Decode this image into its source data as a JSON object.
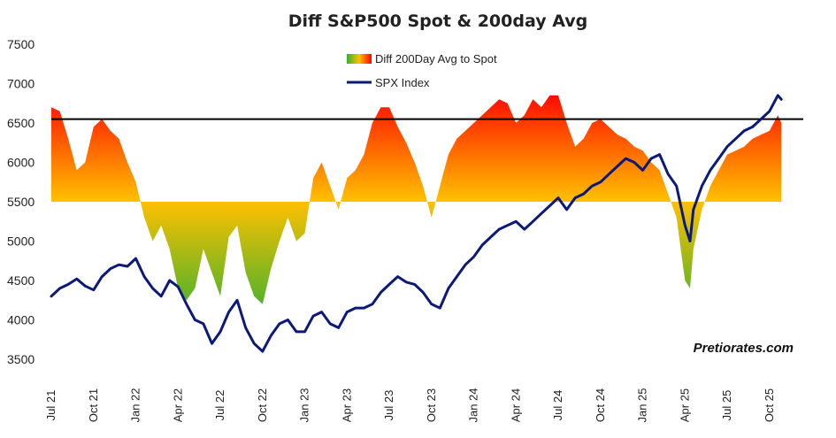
{
  "chart_data": {
    "type": "line",
    "title": "Diff S&P500 Spot & 200day Avg",
    "source_label": "Pretiorates.com",
    "ylim": [
      3500,
      7500
    ],
    "yticks": [
      3500,
      4000,
      4500,
      5000,
      5500,
      6000,
      6500,
      7000,
      7500
    ],
    "xlim": [
      2021.5,
      2025.95
    ],
    "xticks": [
      {
        "label": "Jul 21",
        "t": 2021.5
      },
      {
        "label": "Oct 21",
        "t": 2021.75
      },
      {
        "label": "Jan 22",
        "t": 2022.0
      },
      {
        "label": "Apr 22",
        "t": 2022.25
      },
      {
        "label": "Jul 22",
        "t": 2022.5
      },
      {
        "label": "Oct 22",
        "t": 2022.75
      },
      {
        "label": "Jan 23",
        "t": 2023.0
      },
      {
        "label": "Apr 23",
        "t": 2023.25
      },
      {
        "label": "Jul 23",
        "t": 2023.5
      },
      {
        "label": "Oct 23",
        "t": 2023.75
      },
      {
        "label": "Jan 24",
        "t": 2024.0
      },
      {
        "label": "Apr 24",
        "t": 2024.25
      },
      {
        "label": "Jul 24",
        "t": 2024.5
      },
      {
        "label": "Oct 24",
        "t": 2024.75
      },
      {
        "label": "Jan 25",
        "t": 2025.0
      },
      {
        "label": "Apr 25",
        "t": 2025.25
      },
      {
        "label": "Jul 25",
        "t": 2025.5
      },
      {
        "label": "Oct 25",
        "t": 2025.75
      }
    ],
    "reference_line": 6550,
    "area_baseline": 5500,
    "colors": {
      "spx": "#0b1a7a",
      "ref_line": "#000000",
      "area_top": "#ff0000",
      "area_mid": "#ffc000",
      "area_low": "#35b030"
    },
    "series": [
      {
        "name": "SPX Index",
        "t": [
          2021.5,
          2021.55,
          2021.6,
          2021.65,
          2021.7,
          2021.75,
          2021.8,
          2021.85,
          2021.9,
          2021.95,
          2022.0,
          2022.05,
          2022.1,
          2022.15,
          2022.2,
          2022.25,
          2022.3,
          2022.35,
          2022.4,
          2022.45,
          2022.5,
          2022.55,
          2022.6,
          2022.65,
          2022.7,
          2022.75,
          2022.8,
          2022.85,
          2022.9,
          2022.95,
          2023.0,
          2023.05,
          2023.1,
          2023.15,
          2023.2,
          2023.25,
          2023.3,
          2023.35,
          2023.4,
          2023.45,
          2023.5,
          2023.55,
          2023.6,
          2023.65,
          2023.7,
          2023.75,
          2023.8,
          2023.85,
          2023.9,
          2023.95,
          2024.0,
          2024.05,
          2024.1,
          2024.15,
          2024.2,
          2024.25,
          2024.3,
          2024.35,
          2024.4,
          2024.45,
          2024.5,
          2024.55,
          2024.6,
          2024.65,
          2024.7,
          2024.75,
          2024.8,
          2024.85,
          2024.9,
          2024.95,
          2025.0,
          2025.05,
          2025.1,
          2025.15,
          2025.2,
          2025.25,
          2025.28,
          2025.3,
          2025.35,
          2025.4,
          2025.45,
          2025.5,
          2025.55,
          2025.6,
          2025.65,
          2025.7,
          2025.75,
          2025.8,
          2025.82
        ],
        "values": [
          4300,
          4400,
          4450,
          4520,
          4430,
          4380,
          4550,
          4650,
          4700,
          4680,
          4780,
          4550,
          4400,
          4300,
          4500,
          4420,
          4200,
          4000,
          3950,
          3700,
          3850,
          4100,
          4250,
          3900,
          3700,
          3600,
          3800,
          3950,
          4000,
          3850,
          3850,
          4050,
          4100,
          3950,
          3900,
          4100,
          4150,
          4150,
          4200,
          4350,
          4450,
          4550,
          4480,
          4450,
          4350,
          4200,
          4150,
          4400,
          4550,
          4700,
          4800,
          4950,
          5050,
          5150,
          5200,
          5250,
          5150,
          5250,
          5350,
          5450,
          5550,
          5400,
          5550,
          5600,
          5700,
          5750,
          5850,
          5950,
          6050,
          6000,
          5900,
          6050,
          6100,
          5850,
          5700,
          5200,
          5000,
          5400,
          5700,
          5900,
          6050,
          6200,
          6300,
          6400,
          6450,
          6550,
          6650,
          6850,
          6800
        ]
      },
      {
        "name": "Diff 200Day Avg to Spot",
        "t": [
          2021.5,
          2021.55,
          2021.6,
          2021.65,
          2021.7,
          2021.75,
          2021.8,
          2021.85,
          2021.9,
          2021.95,
          2022.0,
          2022.05,
          2022.1,
          2022.15,
          2022.2,
          2022.25,
          2022.3,
          2022.35,
          2022.4,
          2022.45,
          2022.5,
          2022.55,
          2022.6,
          2022.65,
          2022.7,
          2022.75,
          2022.8,
          2022.85,
          2022.9,
          2022.95,
          2023.0,
          2023.05,
          2023.1,
          2023.15,
          2023.2,
          2023.25,
          2023.3,
          2023.35,
          2023.4,
          2023.45,
          2023.5,
          2023.55,
          2023.6,
          2023.65,
          2023.7,
          2023.75,
          2023.8,
          2023.85,
          2023.9,
          2023.95,
          2024.0,
          2024.05,
          2024.1,
          2024.15,
          2024.2,
          2024.25,
          2024.3,
          2024.35,
          2024.4,
          2024.45,
          2024.5,
          2024.55,
          2024.6,
          2024.65,
          2024.7,
          2024.75,
          2024.8,
          2024.85,
          2024.9,
          2024.95,
          2025.0,
          2025.05,
          2025.1,
          2025.15,
          2025.2,
          2025.25,
          2025.28,
          2025.3,
          2025.35,
          2025.4,
          2025.45,
          2025.5,
          2025.55,
          2025.6,
          2025.65,
          2025.7,
          2025.75,
          2025.8,
          2025.82
        ],
        "values": [
          6700,
          6650,
          6300,
          5900,
          6000,
          6450,
          6550,
          6400,
          6300,
          6000,
          5750,
          5300,
          5000,
          5200,
          4900,
          4400,
          4250,
          4400,
          4900,
          4600,
          4300,
          5050,
          5200,
          4600,
          4300,
          4200,
          4650,
          5000,
          5300,
          5000,
          5100,
          5800,
          6000,
          5700,
          5400,
          5800,
          5900,
          6100,
          6500,
          6700,
          6700,
          6450,
          6250,
          6000,
          5700,
          5300,
          5700,
          6100,
          6300,
          6400,
          6500,
          6600,
          6700,
          6800,
          6750,
          6500,
          6600,
          6800,
          6700,
          6850,
          6850,
          6500,
          6200,
          6300,
          6500,
          6550,
          6450,
          6350,
          6300,
          6200,
          6150,
          6000,
          5900,
          5600,
          5300,
          4500,
          4400,
          4900,
          5400,
          5700,
          5900,
          6100,
          6150,
          6200,
          6300,
          6350,
          6400,
          6600,
          6500
        ]
      }
    ],
    "legend": [
      {
        "label": "Diff 200Day Avg to Spot",
        "kind": "gradient-swatch"
      },
      {
        "label": "SPX Index",
        "kind": "line"
      }
    ]
  }
}
